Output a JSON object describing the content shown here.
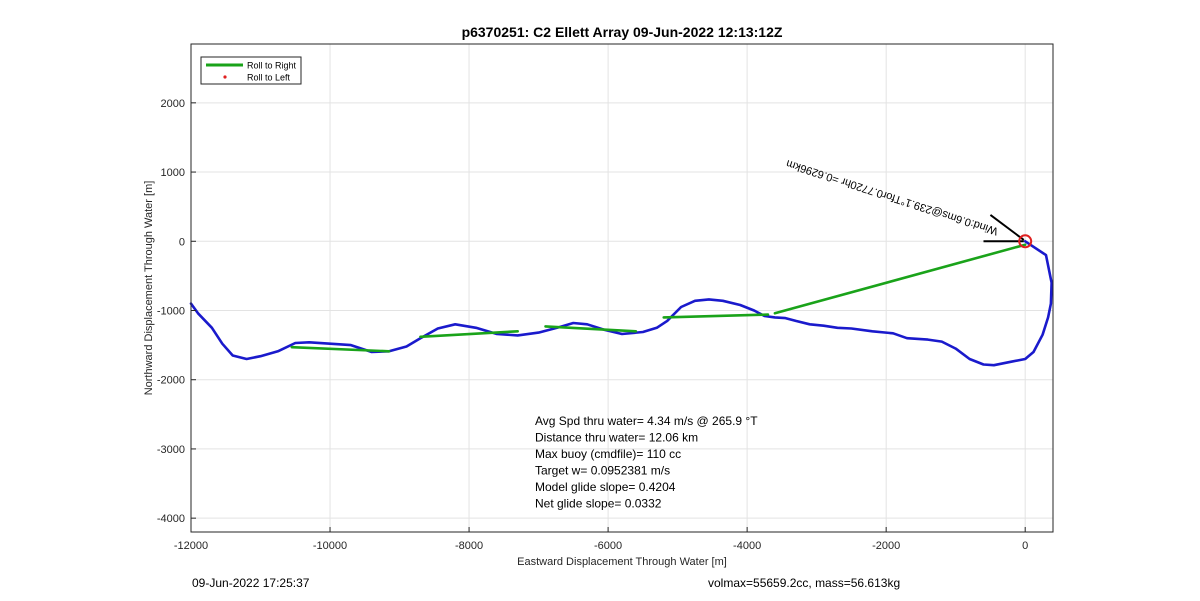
{
  "chart_data": {
    "type": "line",
    "title": "p6370251: C2 Ellett Array 09-Jun-2022 12:13:12Z",
    "xlabel": "Eastward Displacement Through Water [m]",
    "ylabel": "Northward Displacement Through Water [m]",
    "xlim": [
      -12000,
      400
    ],
    "ylim": [
      -4200,
      2850
    ],
    "xticks": [
      -12000,
      -10000,
      -8000,
      -6000,
      -4000,
      -2000,
      0
    ],
    "yticks": [
      -4000,
      -3000,
      -2000,
      -1000,
      0,
      1000,
      2000
    ],
    "grid": true,
    "legend": {
      "placement": "top-left",
      "entries": [
        {
          "label": "Roll to Right",
          "color": "#1aa31a",
          "style": "line"
        },
        {
          "label": "Roll to Left",
          "color": "#e02020",
          "style": "dot"
        }
      ]
    },
    "series": [
      {
        "role": "track",
        "color": "#1a1acc",
        "points": [
          [
            0,
            0
          ],
          [
            300,
            -200
          ],
          [
            380,
            -600
          ],
          [
            370,
            -900
          ],
          [
            330,
            -1100
          ],
          [
            250,
            -1350
          ],
          [
            120,
            -1600
          ],
          [
            0,
            -1700
          ],
          [
            -200,
            -1740
          ],
          [
            -450,
            -1790
          ],
          [
            -600,
            -1780
          ],
          [
            -800,
            -1700
          ],
          [
            -1000,
            -1550
          ],
          [
            -1200,
            -1450
          ],
          [
            -1400,
            -1420
          ],
          [
            -1700,
            -1400
          ],
          [
            -1900,
            -1330
          ],
          [
            -2200,
            -1300
          ],
          [
            -2500,
            -1260
          ],
          [
            -2700,
            -1250
          ],
          [
            -2900,
            -1220
          ],
          [
            -3100,
            -1200
          ],
          [
            -3300,
            -1150
          ],
          [
            -3450,
            -1110
          ],
          [
            -3600,
            -1100
          ],
          [
            -3750,
            -1080
          ],
          [
            -3900,
            -1000
          ],
          [
            -4100,
            -920
          ],
          [
            -4350,
            -860
          ],
          [
            -4550,
            -840
          ],
          [
            -4750,
            -860
          ],
          [
            -4950,
            -950
          ],
          [
            -5150,
            -1150
          ],
          [
            -5300,
            -1250
          ],
          [
            -5500,
            -1310
          ],
          [
            -5800,
            -1340
          ],
          [
            -6050,
            -1280
          ],
          [
            -6300,
            -1200
          ],
          [
            -6500,
            -1180
          ],
          [
            -6700,
            -1240
          ],
          [
            -7000,
            -1320
          ],
          [
            -7300,
            -1360
          ],
          [
            -7600,
            -1340
          ],
          [
            -7900,
            -1250
          ],
          [
            -8200,
            -1200
          ],
          [
            -8450,
            -1260
          ],
          [
            -8700,
            -1400
          ],
          [
            -8900,
            -1520
          ],
          [
            -9150,
            -1590
          ],
          [
            -9400,
            -1600
          ],
          [
            -9700,
            -1500
          ],
          [
            -10000,
            -1480
          ],
          [
            -10300,
            -1460
          ],
          [
            -10500,
            -1470
          ],
          [
            -10750,
            -1590
          ],
          [
            -11000,
            -1660
          ],
          [
            -11200,
            -1700
          ],
          [
            -11400,
            -1650
          ],
          [
            -11550,
            -1480
          ],
          [
            -11700,
            -1250
          ],
          [
            -11900,
            -1040
          ],
          [
            -12000,
            -900
          ]
        ]
      },
      {
        "role": "segment",
        "color": "#1aa31a",
        "points": [
          [
            0,
            -50
          ],
          [
            -3600,
            -1040
          ]
        ]
      },
      {
        "role": "segment",
        "color": "#1aa31a",
        "points": [
          [
            -3700,
            -1060
          ],
          [
            -5200,
            -1100
          ]
        ]
      },
      {
        "role": "segment",
        "color": "#1aa31a",
        "points": [
          [
            -5600,
            -1300
          ],
          [
            -6900,
            -1230
          ]
        ]
      },
      {
        "role": "segment",
        "color": "#1aa31a",
        "points": [
          [
            -7300,
            -1300
          ],
          [
            -8700,
            -1380
          ]
        ]
      },
      {
        "role": "segment",
        "color": "#1aa31a",
        "points": [
          [
            -9150,
            -1590
          ],
          [
            -10550,
            -1530
          ]
        ]
      }
    ],
    "markers": [
      {
        "type": "circle",
        "x": 0,
        "y": 0,
        "color": "#e02020"
      }
    ],
    "arrows": [
      {
        "from": [
          -20,
          20
        ],
        "to": [
          -500,
          380
        ],
        "color": "#000000"
      },
      {
        "from": [
          -20,
          0
        ],
        "to": [
          -600,
          0
        ],
        "color": "#000000"
      }
    ],
    "annotations": [
      {
        "text": "Avg Spd thru water=  4.34 m/s @ 265.9 °T"
      },
      {
        "text": "Distance thru water= 12.06 km"
      },
      {
        "text": "Max buoy (cmdfile)= 110 cc"
      },
      {
        "text": "Target w= 0.0952381 m/s"
      },
      {
        "text": "Model glide slope= 0.4204"
      },
      {
        "text": "Net glide slope= 0.0332"
      }
    ],
    "rotated_label": {
      "text": "Wind:0.6ms@239.1°Tfor0.7720hr =0.6296km",
      "color": "#000000"
    }
  },
  "footer": {
    "left": "09-Jun-2022 17:25:37",
    "right": "volmax=55659.2cc, mass=56.613kg"
  }
}
